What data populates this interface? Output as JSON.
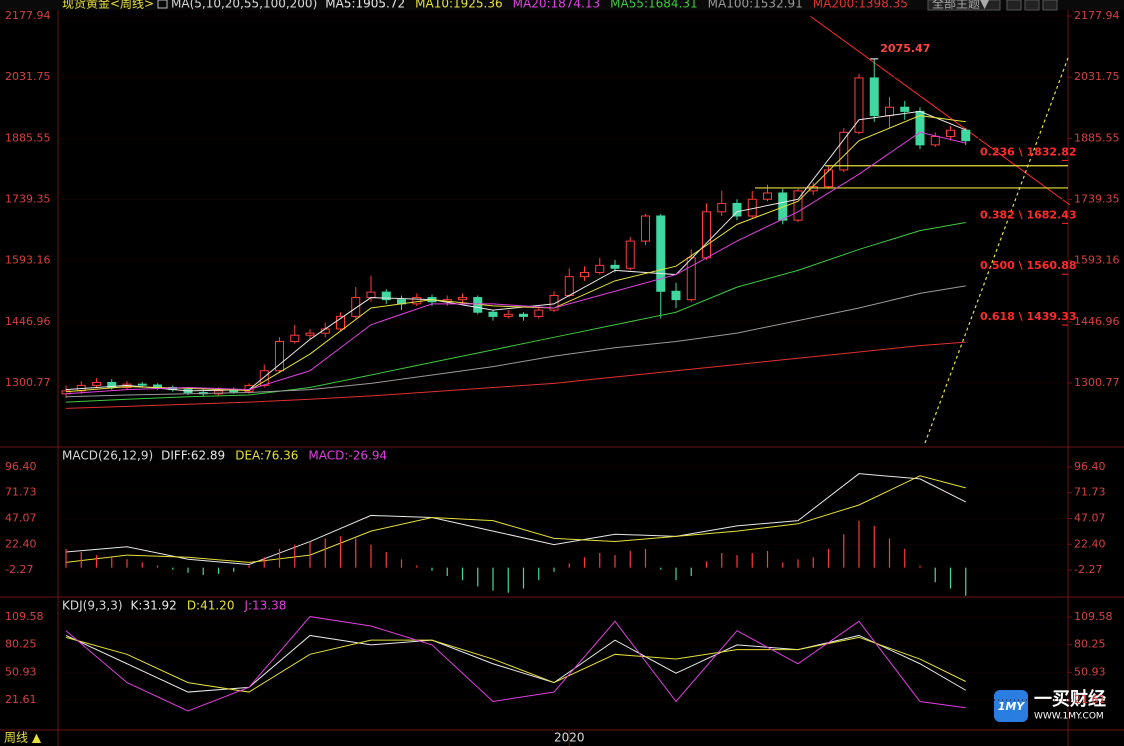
{
  "header": {
    "title": "现货黄金<周线>",
    "ma_label": "MA(5,10,20,55,100,200)",
    "theme_button": "全部主题▼"
  },
  "footer": {
    "period": "周线 ▲"
  },
  "watermark": {
    "logo": "1MY",
    "brand": "一买财经",
    "url": "WWW.1MY.COM"
  },
  "chart_data": [
    {
      "type": "candlestick",
      "categories": [
        null,
        null,
        null,
        null,
        null,
        null,
        null,
        null,
        null,
        null,
        null,
        null,
        null,
        null,
        null,
        null,
        null,
        null,
        null,
        null,
        null,
        null,
        null,
        null,
        null,
        null,
        null,
        null,
        null,
        null,
        null,
        null,
        null,
        "2020",
        null,
        null,
        null,
        null,
        null,
        null,
        null,
        null,
        null,
        null,
        null,
        null,
        null,
        null,
        null,
        null,
        null,
        null,
        null,
        null,
        null,
        null,
        null,
        null,
        null,
        null
      ],
      "open": [
        1275,
        1282,
        1295,
        1302,
        1290,
        1298,
        1296,
        1290,
        1285,
        1278,
        1275,
        1282,
        1280,
        1295,
        1330,
        1400,
        1415,
        1420,
        1430,
        1460,
        1505,
        1518,
        1500,
        1490,
        1505,
        1495,
        1500,
        1505,
        1470,
        1460,
        1465,
        1460,
        1475,
        1510,
        1555,
        1565,
        1582,
        1575,
        1640,
        1700,
        1520,
        1500,
        1600,
        1710,
        1730,
        1700,
        1740,
        1755,
        1690,
        1760,
        1770,
        1810,
        1900,
        2030,
        1940,
        1960,
        1950,
        1870,
        1890,
        1905
      ],
      "high": [
        1295,
        1305,
        1312,
        1310,
        1305,
        1303,
        1300,
        1295,
        1290,
        1285,
        1290,
        1290,
        1300,
        1345,
        1410,
        1440,
        1430,
        1445,
        1470,
        1530,
        1557,
        1525,
        1510,
        1515,
        1512,
        1510,
        1515,
        1510,
        1475,
        1475,
        1470,
        1480,
        1520,
        1575,
        1580,
        1600,
        1595,
        1650,
        1705,
        1705,
        1540,
        1620,
        1730,
        1760,
        1740,
        1760,
        1775,
        1765,
        1765,
        1780,
        1820,
        1910,
        2040,
        2075.47,
        1985,
        1975,
        1960,
        1900,
        1915,
        1910
      ],
      "low": [
        1265,
        1275,
        1290,
        1285,
        1285,
        1290,
        1285,
        1280,
        1272,
        1268,
        1270,
        1275,
        1275,
        1290,
        1325,
        1395,
        1405,
        1410,
        1425,
        1455,
        1495,
        1490,
        1475,
        1485,
        1485,
        1485,
        1490,
        1465,
        1450,
        1455,
        1450,
        1455,
        1470,
        1505,
        1545,
        1560,
        1565,
        1570,
        1630,
        1455,
        1480,
        1495,
        1595,
        1700,
        1690,
        1695,
        1735,
        1680,
        1685,
        1750,
        1765,
        1805,
        1895,
        1925,
        1910,
        1930,
        1860,
        1865,
        1880,
        1870
      ],
      "close": [
        1282,
        1295,
        1302,
        1290,
        1298,
        1296,
        1290,
        1285,
        1278,
        1275,
        1282,
        1280,
        1295,
        1330,
        1400,
        1415,
        1420,
        1430,
        1460,
        1505,
        1518,
        1500,
        1490,
        1505,
        1495,
        1500,
        1505,
        1470,
        1460,
        1465,
        1460,
        1475,
        1510,
        1555,
        1565,
        1582,
        1575,
        1640,
        1700,
        1520,
        1500,
        1600,
        1710,
        1730,
        1700,
        1740,
        1755,
        1690,
        1760,
        1770,
        1810,
        1900,
        2030,
        1940,
        1960,
        1950,
        1870,
        1890,
        1905,
        1880
      ],
      "up_color": "#ff3b3b",
      "down_color": "#3fd8a0",
      "ylim": [
        1152.6,
        2204.3
      ],
      "yticks": [
        1300.77,
        1446.96,
        1593.16,
        1739.35,
        1885.55,
        2031.75,
        2177.94
      ],
      "series": [
        {
          "name": "MA5",
          "label": "MA5:1905.72",
          "kind": "line",
          "color": "#e8e8e8",
          "x": [
            0,
            4,
            8,
            12,
            16,
            20,
            24,
            28,
            32,
            36,
            40,
            44,
            48,
            52,
            56,
            59
          ],
          "values": [
            1285,
            1295,
            1282,
            1285,
            1405,
            1505,
            1500,
            1475,
            1490,
            1570,
            1560,
            1710,
            1740,
            1930,
            1950,
            1905.72
          ]
        },
        {
          "name": "MA10",
          "label": "MA10:1925.36",
          "kind": "line",
          "color": "#e6e03a",
          "x": [
            0,
            4,
            8,
            12,
            16,
            20,
            24,
            28,
            32,
            36,
            40,
            44,
            48,
            52,
            56,
            59
          ],
          "values": [
            1280,
            1292,
            1288,
            1283,
            1370,
            1480,
            1500,
            1485,
            1480,
            1545,
            1580,
            1680,
            1735,
            1880,
            1940,
            1925.36
          ]
        },
        {
          "name": "MA20",
          "label": "MA20:1874.13",
          "kind": "line",
          "color": "#e040e0",
          "x": [
            0,
            4,
            8,
            12,
            16,
            20,
            24,
            28,
            32,
            36,
            40,
            44,
            48,
            52,
            56,
            59
          ],
          "values": [
            1275,
            1285,
            1290,
            1285,
            1330,
            1440,
            1490,
            1490,
            1480,
            1520,
            1560,
            1640,
            1710,
            1800,
            1900,
            1874.13
          ]
        },
        {
          "name": "MA55",
          "label": "MA55:1684.31",
          "kind": "line",
          "color": "#3ec93e",
          "x": [
            0,
            4,
            8,
            12,
            16,
            20,
            24,
            28,
            32,
            36,
            40,
            44,
            48,
            52,
            56,
            59
          ],
          "values": [
            1255,
            1262,
            1268,
            1272,
            1290,
            1320,
            1350,
            1380,
            1410,
            1440,
            1470,
            1530,
            1570,
            1620,
            1665,
            1684.31
          ]
        },
        {
          "name": "MA100",
          "label": "MA100:1532.91",
          "kind": "line",
          "color": "#9a9a9a",
          "x": [
            0,
            4,
            8,
            12,
            16,
            20,
            24,
            28,
            32,
            36,
            40,
            44,
            48,
            52,
            56,
            59
          ],
          "values": [
            1268,
            1272,
            1275,
            1278,
            1285,
            1300,
            1320,
            1340,
            1365,
            1385,
            1400,
            1420,
            1450,
            1480,
            1515,
            1532.91
          ]
        },
        {
          "name": "MA200",
          "label": "MA200:1398.35",
          "kind": "line",
          "color": "#e03030",
          "x": [
            0,
            4,
            8,
            12,
            16,
            20,
            24,
            28,
            32,
            36,
            40,
            44,
            48,
            52,
            56,
            59
          ],
          "values": [
            1240,
            1245,
            1250,
            1255,
            1262,
            1270,
            1280,
            1290,
            1300,
            1315,
            1330,
            1345,
            1360,
            1375,
            1390,
            1398.35
          ]
        }
      ],
      "annotations": [
        {
          "value": 1832.82,
          "label": "0.236 \\ 1832.82"
        },
        {
          "value": 1682.43,
          "label": "0.382 \\ 1682.43"
        },
        {
          "value": 1560.88,
          "label": "0.500 \\ 1560.88"
        },
        {
          "value": 1439.33,
          "label": "0.618 \\ 1439.33"
        }
      ],
      "annotation_color": "#ff2a2a",
      "hlines": [
        1820,
        1767
      ],
      "hline_color": "#e6e03a"
    },
    {
      "type": "indicator",
      "title": "MACD(26,12,9)",
      "ylim": [
        -26.2,
        109.8
      ],
      "yticks": [
        {
          "value": 96.4,
          "label": "96.40"
        },
        71.73,
        47.07,
        {
          "value": 22.4,
          "label": "22.40"
        },
        -2.27
      ],
      "series": [
        {
          "name": "DIFF",
          "label": "DIFF:62.89",
          "kind": "line",
          "color": "#e8e8e8",
          "x": [
            0,
            4,
            8,
            12,
            16,
            20,
            24,
            28,
            32,
            36,
            40,
            44,
            48,
            52,
            56,
            59
          ],
          "values": [
            15,
            20,
            8,
            3,
            25,
            50,
            48,
            35,
            22,
            32,
            30,
            40,
            45,
            90,
            85,
            62.89
          ]
        },
        {
          "name": "DEA",
          "label": "DEA:76.36",
          "kind": "line",
          "color": "#e6e03a",
          "x": [
            0,
            4,
            8,
            12,
            16,
            20,
            24,
            28,
            32,
            36,
            40,
            44,
            48,
            52,
            56,
            59
          ],
          "values": [
            5,
            12,
            10,
            5,
            12,
            35,
            48,
            45,
            28,
            25,
            30,
            35,
            42,
            60,
            88,
            76.36
          ]
        },
        {
          "name": "MACD",
          "label": "MACD:-26.94",
          "kind": "bar",
          "color": "#e040e0",
          "up_color": "#ff3b3b",
          "down_color": "#3fd8a0",
          "values": [
            18,
            15,
            12,
            10,
            8,
            5,
            2,
            -2,
            -5,
            -7,
            -6,
            -4,
            2,
            10,
            18,
            22,
            25,
            28,
            30,
            28,
            22,
            15,
            8,
            2,
            -3,
            -8,
            -12,
            -18,
            -22,
            -24,
            -20,
            -12,
            -4,
            4,
            10,
            14,
            12,
            16,
            18,
            -2,
            -12,
            -8,
            6,
            14,
            12,
            14,
            16,
            5,
            8,
            10,
            18,
            32,
            45,
            40,
            28,
            18,
            2,
            -14,
            -20,
            -26.94
          ]
        }
      ]
    },
    {
      "type": "indicator",
      "title": "KDJ(9,3,3)",
      "ylim": [
        -8.1,
        124.4
      ],
      "yticks": [
        109.58,
        80.25,
        50.93,
        21.61
      ],
      "series": [
        {
          "name": "K",
          "label": "K:31.92",
          "kind": "line",
          "color": "#e8e8e8",
          "x": [
            0,
            4,
            8,
            12,
            16,
            20,
            24,
            28,
            32,
            36,
            40,
            44,
            48,
            52,
            56,
            59
          ],
          "values": [
            90,
            60,
            30,
            35,
            90,
            80,
            85,
            60,
            40,
            85,
            50,
            80,
            75,
            90,
            60,
            31.92
          ]
        },
        {
          "name": "D",
          "label": "D:41.20",
          "kind": "line",
          "color": "#e6e03a",
          "x": [
            0,
            4,
            8,
            12,
            16,
            20,
            24,
            28,
            32,
            36,
            40,
            44,
            48,
            52,
            56,
            59
          ],
          "values": [
            88,
            70,
            40,
            30,
            70,
            85,
            85,
            65,
            40,
            70,
            65,
            75,
            75,
            88,
            65,
            41.2
          ]
        },
        {
          "name": "J",
          "label": "J:13.38",
          "kind": "line",
          "color": "#e040e0",
          "x": [
            0,
            4,
            8,
            12,
            16,
            20,
            24,
            28,
            32,
            36,
            40,
            44,
            48,
            52,
            56,
            59
          ],
          "values": [
            95,
            40,
            10,
            35,
            110,
            100,
            80,
            20,
            30,
            105,
            20,
            95,
            60,
            105,
            20,
            13.38
          ]
        }
      ]
    }
  ]
}
